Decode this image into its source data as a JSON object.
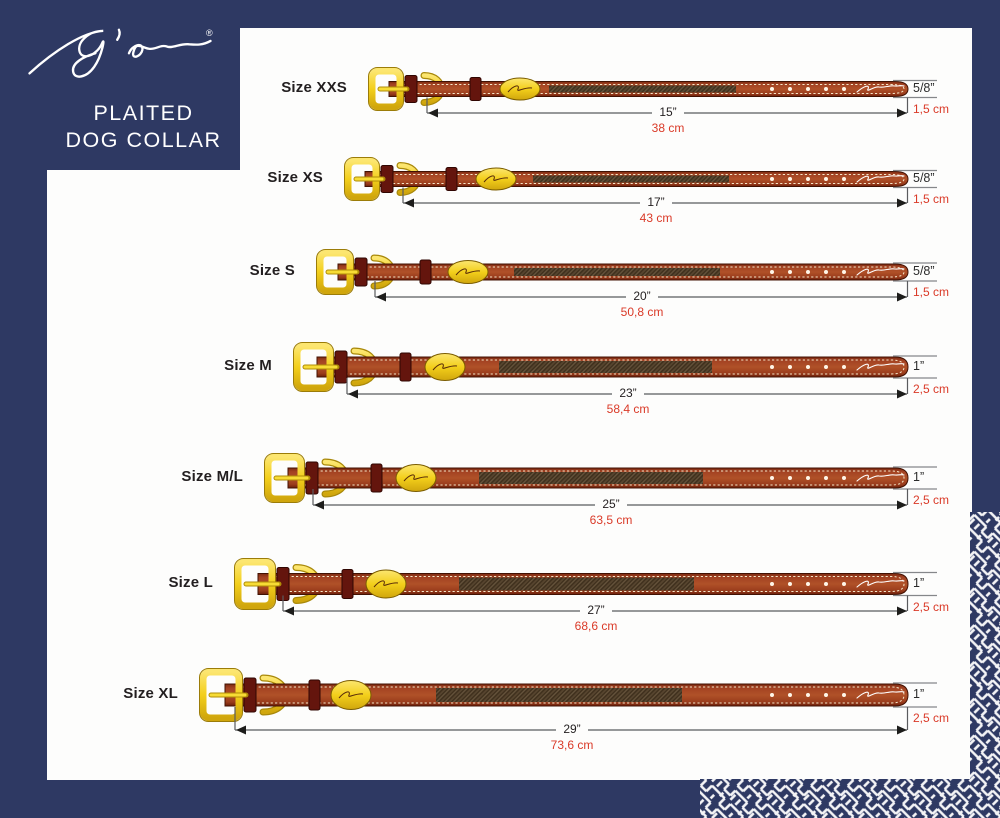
{
  "brand": {
    "logo_name": "Dy'on",
    "registered_mark": "®",
    "title_line1": "PLAITED",
    "title_line2": "DOG COLLAR"
  },
  "rows": [
    {
      "size_label": "Size XXS",
      "length_in": "15”",
      "length_cm": "38 cm",
      "width_in": "5/8”",
      "width_cm": "1,5 cm"
    },
    {
      "size_label": "Size XS",
      "length_in": "17”",
      "length_cm": "43 cm",
      "width_in": "5/8”",
      "width_cm": "1,5 cm"
    },
    {
      "size_label": "Size S",
      "length_in": "20”",
      "length_cm": "50,8 cm",
      "width_in": "5/8”",
      "width_cm": "1,5 cm"
    },
    {
      "size_label": "Size M",
      "length_in": "23”",
      "length_cm": "58,4 cm",
      "width_in": "1”",
      "width_cm": "2,5 cm"
    },
    {
      "size_label": "Size M/L",
      "length_in": "25”",
      "length_cm": "63,5 cm",
      "width_in": "1”",
      "width_cm": "2,5 cm"
    },
    {
      "size_label": "Size L",
      "length_in": "27”",
      "length_cm": "68,6 cm",
      "width_in": "1”",
      "width_cm": "2,5 cm"
    },
    {
      "size_label": "Size XL",
      "length_in": "29”",
      "length_cm": "73,6 cm",
      "width_in": "1”",
      "width_cm": "2,5 cm"
    }
  ],
  "colors": {
    "navy": "#2e3963",
    "white_panel": "#fdfdfc",
    "red_text": "#da3a28",
    "black_text": "#231f20",
    "gold": "#f3cf1b",
    "leather_brown": "#a34222",
    "keeper_maroon": "#64150d"
  }
}
